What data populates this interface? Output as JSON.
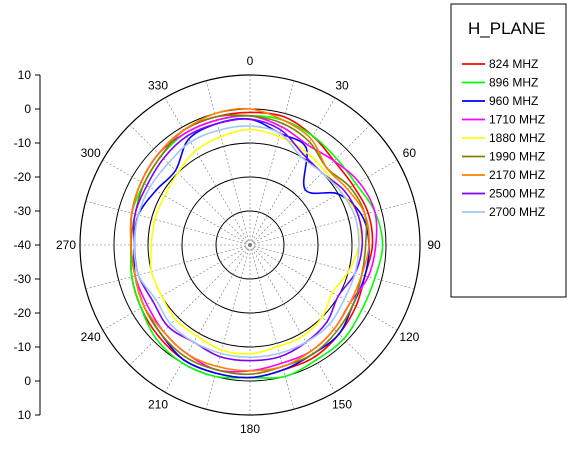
{
  "chart_data": {
    "type": "line",
    "subtype": "polar",
    "title": "H_PLANE",
    "angle_unit": "deg",
    "angle_ticks": [
      "0",
      "30",
      "60",
      "90",
      "120",
      "150",
      "180",
      "210",
      "240",
      "270",
      "300",
      "330"
    ],
    "radial_range": [
      -40,
      10
    ],
    "radial_ticks": [
      "10",
      "0",
      "-10",
      "-20",
      "-30",
      "-40",
      "-30",
      "-20",
      "-10",
      "0",
      "10"
    ],
    "grid": true,
    "legend_position": "top-right",
    "theta": [
      0,
      15,
      30,
      45,
      60,
      75,
      90,
      105,
      120,
      135,
      150,
      165,
      180,
      195,
      210,
      225,
      240,
      255,
      270,
      285,
      300,
      315,
      330,
      345
    ],
    "series": [
      {
        "name": "824 MHZ",
        "color": "#ff0000",
        "r": [
          -1,
          -1,
          -3,
          -5,
          -5,
          -4,
          -4,
          -5,
          -4,
          -3,
          -2,
          -2,
          -1,
          -1,
          -1,
          -2,
          -3,
          -4,
          -5,
          -4,
          -3,
          -2,
          -1,
          -1
        ]
      },
      {
        "name": "896 MHZ",
        "color": "#00ff00",
        "r": [
          -2,
          -2,
          -3,
          -4,
          -4,
          -2,
          -1,
          -2,
          -2,
          -1,
          -1,
          0,
          -1,
          0,
          0,
          -1,
          -3,
          -4,
          -5,
          -4,
          -4,
          -3,
          -2,
          -2
        ]
      },
      {
        "name": "960 MHZ",
        "color": "#0000ff",
        "r": [
          -3,
          -6,
          -7,
          -17,
          -10,
          -6,
          -5,
          -5,
          -5,
          -3,
          -3,
          -2,
          -1,
          -1,
          -1,
          -3,
          -4,
          -5,
          -6,
          -6,
          -8,
          -9,
          -4,
          -3
        ]
      },
      {
        "name": "1710 MHZ",
        "color": "#ff00ff",
        "r": [
          -2,
          -4,
          -6,
          -5,
          -3,
          -2,
          -3,
          -4,
          -6,
          -5,
          -4,
          -4,
          -3,
          -2,
          -3,
          -4,
          -5,
          -5,
          -5,
          -4,
          -3,
          -2,
          -2,
          -2
        ]
      },
      {
        "name": "1880 MHZ",
        "color": "#ffff00",
        "r": [
          -6,
          -7,
          -8,
          -9,
          -9,
          -7,
          -8,
          -10,
          -12,
          -10,
          -9,
          -9,
          -8,
          -8,
          -9,
          -9,
          -10,
          -10,
          -11,
          -11,
          -11,
          -10,
          -8,
          -7
        ]
      },
      {
        "name": "1990 MHZ",
        "color": "#808000",
        "r": [
          -2,
          -3,
          -5,
          -8,
          -6,
          -5,
          -6,
          -6,
          -5,
          -4,
          -3,
          -3,
          -2,
          -2,
          -2,
          -3,
          -4,
          -5,
          -5,
          -5,
          -4,
          -3,
          -1,
          -1
        ]
      },
      {
        "name": "2170 MHZ",
        "color": "#ff8000",
        "r": [
          0,
          -2,
          -4,
          -8,
          -7,
          -5,
          -5,
          -6,
          -6,
          -5,
          -4,
          -3,
          -3,
          -3,
          -3,
          -4,
          -4,
          -5,
          -5,
          -4,
          -3,
          -2,
          -1,
          0
        ]
      },
      {
        "name": "2500 MHZ",
        "color": "#8000ff",
        "r": [
          -3,
          -5,
          -9,
          -10,
          -8,
          -7,
          -7,
          -8,
          -10,
          -8,
          -7,
          -6,
          -6,
          -6,
          -7,
          -6,
          -7,
          -6,
          -6,
          -5,
          -5,
          -4,
          -3,
          -3
        ]
      },
      {
        "name": "2700 MHZ",
        "color": "#a0c8f0",
        "r": [
          -5,
          -6,
          -10,
          -10,
          -9,
          -8,
          -8,
          -8,
          -8,
          -7,
          -7,
          -7,
          -7,
          -7,
          -7,
          -7,
          -8,
          -6,
          -6,
          -6,
          -6,
          -6,
          -5,
          -5
        ]
      }
    ]
  }
}
